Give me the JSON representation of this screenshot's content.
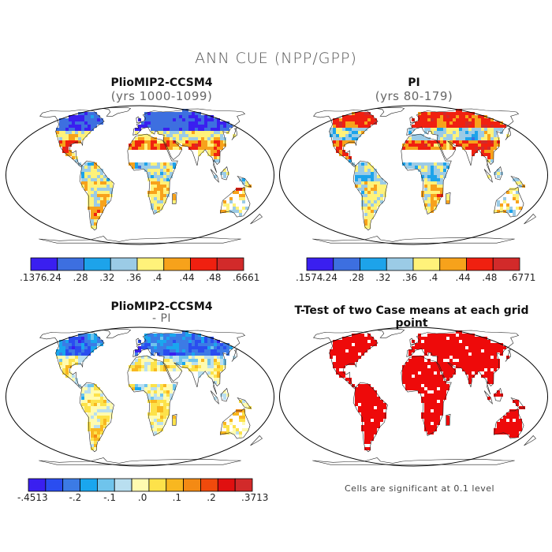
{
  "title": "ANN CUE (NPP/GPP)",
  "panels": [
    {
      "id": "plio",
      "title": "PlioMIP2-CCSM4",
      "subtitle": "(yrs 1000-1099)",
      "scheme": "warm"
    },
    {
      "id": "pi",
      "title": "PI",
      "subtitle": "(yrs 80-179)",
      "scheme": "pi"
    },
    {
      "id": "diff",
      "title": "PlioMIP2-CCSM4",
      "subtitle": "- PI",
      "scheme": "diff"
    },
    {
      "id": "ttest",
      "title": "T-Test of two Case means at each grid point",
      "subtitle": "",
      "scheme": "sig"
    }
  ],
  "colorbars": [
    {
      "id": "cb1",
      "colors": [
        "#3a1ff0",
        "#3d6fe0",
        "#1da3ea",
        "#9bcbe6",
        "#fff27a",
        "#f7a21b",
        "#f02010",
        "#d22a2a"
      ],
      "labels": [
        ".1376",
        ".24",
        ".28",
        ".32",
        ".36",
        ".4",
        ".44",
        ".48",
        ".6661"
      ]
    },
    {
      "id": "cb2",
      "colors": [
        "#3a1ff0",
        "#3d6fe0",
        "#1da3ea",
        "#9bcbe6",
        "#fff27a",
        "#f7a21b",
        "#f02010",
        "#d22a2a"
      ],
      "labels": [
        ".1574",
        ".24",
        ".28",
        ".32",
        ".36",
        ".4",
        ".44",
        ".48",
        ".6771"
      ]
    },
    {
      "id": "cb3",
      "colors": [
        "#3a1ff0",
        "#2a4df0",
        "#3c7be5",
        "#1aa6ee",
        "#6fc4ec",
        "#b9dff0",
        "#fffbb0",
        "#fde24a",
        "#f8b720",
        "#f48a14",
        "#f04a0c",
        "#e01010",
        "#d22a2a"
      ],
      "labels": [
        "-.4513",
        "-.2",
        "-.1",
        ".0",
        ".1",
        ".2",
        ".3713"
      ]
    }
  ],
  "significance_note": "Cells are significant at 0.1 level"
}
